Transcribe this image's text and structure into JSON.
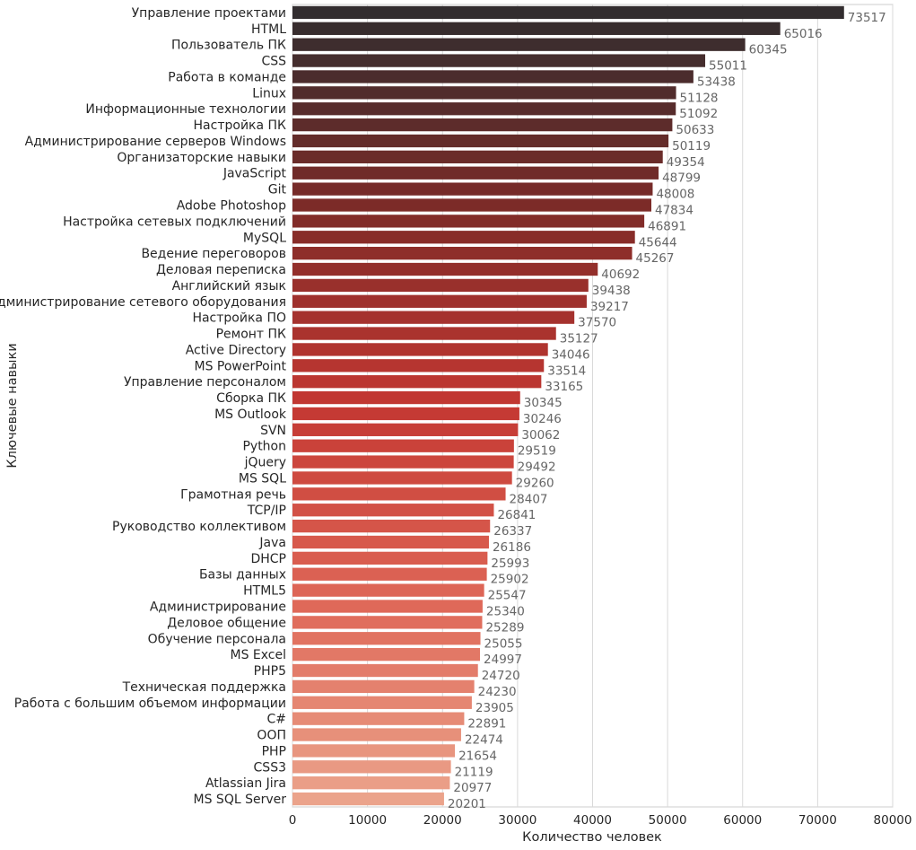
{
  "chart_data": {
    "type": "bar",
    "orientation": "horizontal",
    "xlabel": "Количество человек",
    "ylabel": "Ключевые навыки",
    "xlim": [
      0,
      80000
    ],
    "xticks": [
      0,
      10000,
      20000,
      30000,
      40000,
      50000,
      60000,
      70000,
      80000
    ],
    "xtick_labels": [
      "0",
      "10000",
      "20000",
      "30000",
      "40000",
      "50000",
      "60000",
      "70000",
      "80000"
    ],
    "grid": true,
    "palette": "Reds_d",
    "categories": [
      "Управление проектами",
      "HTML",
      "Пользователь ПК",
      "CSS",
      "Работа в команде",
      "Linux",
      "Информационные технологии",
      "Настройка ПК",
      "Администрирование серверов Windows",
      "Организаторские навыки",
      "JavaScript",
      "Git",
      "Adobe Photoshop",
      "Настройка сетевых подключений",
      "MySQL",
      "Ведение переговоров",
      "Деловая переписка",
      "Английский язык",
      "Администрирование сетевого оборудования",
      "Настройка ПО",
      "Ремонт ПК",
      "Active Directory",
      "MS PowerPoint",
      "Управление персоналом",
      "Сборка ПК",
      "MS Outlook",
      "SVN",
      "Python",
      "jQuery",
      "MS SQL",
      "Грамотная речь",
      "TCP/IP",
      "Руководство коллективом",
      "Java",
      "DHCP",
      "Базы данных",
      "HTML5",
      "Администрирование",
      "Деловое общение",
      "Обучение персонала",
      "MS Excel",
      "PHP5",
      "Техническая поддержка",
      "Работа с большим объемом информации",
      "C#",
      "ООП",
      "PHP",
      "CSS3",
      "Atlassian Jira",
      "MS SQL Server"
    ],
    "values": [
      73517,
      65016,
      60345,
      55011,
      53438,
      51128,
      51092,
      50633,
      50119,
      49354,
      48799,
      48008,
      47834,
      46891,
      45644,
      45267,
      40692,
      39438,
      39217,
      37570,
      35127,
      34046,
      33514,
      33165,
      30345,
      30246,
      30062,
      29519,
      29492,
      29260,
      28407,
      26841,
      26337,
      26186,
      25993,
      25902,
      25547,
      25340,
      25289,
      25055,
      24997,
      24720,
      24230,
      23905,
      22891,
      22474,
      21654,
      21119,
      20977,
      20201
    ]
  }
}
